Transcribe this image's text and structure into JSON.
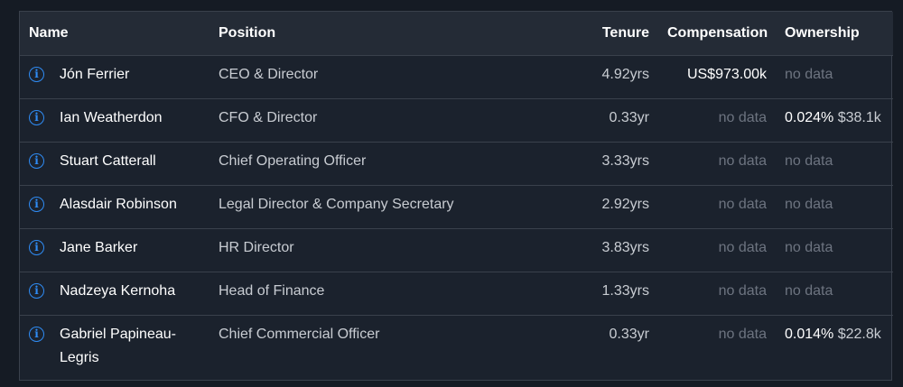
{
  "columns": {
    "name": "Name",
    "position": "Position",
    "tenure": "Tenure",
    "compensation": "Compensation",
    "ownership": "Ownership"
  },
  "rows": [
    {
      "name": "Jón Ferrier",
      "position": "CEO & Director",
      "tenure": "4.92yrs",
      "compensation": "US$973.00k",
      "ownership_pct": "",
      "ownership_amt": "",
      "ownership_text": "no data"
    },
    {
      "name": "Ian Weatherdon",
      "position": "CFO & Director",
      "tenure": "0.33yr",
      "compensation": "no data",
      "ownership_pct": "0.024%",
      "ownership_amt": "$38.1k",
      "ownership_text": ""
    },
    {
      "name": "Stuart Catterall",
      "position": "Chief Operating Officer",
      "tenure": "3.33yrs",
      "compensation": "no data",
      "ownership_pct": "",
      "ownership_amt": "",
      "ownership_text": "no data"
    },
    {
      "name": "Alasdair Robinson",
      "position": "Legal Director & Company Secretary",
      "tenure": "2.92yrs",
      "compensation": "no data",
      "ownership_pct": "",
      "ownership_amt": "",
      "ownership_text": "no data"
    },
    {
      "name": "Jane Barker",
      "position": "HR Director",
      "tenure": "3.83yrs",
      "compensation": "no data",
      "ownership_pct": "",
      "ownership_amt": "",
      "ownership_text": "no data"
    },
    {
      "name": "Nadzeya Kernoha",
      "position": "Head of Finance",
      "tenure": "1.33yrs",
      "compensation": "no data",
      "ownership_pct": "",
      "ownership_amt": "",
      "ownership_text": "no data"
    },
    {
      "name": "Gabriel Papineau-Legris",
      "position": "Chief Commercial Officer",
      "tenure": "0.33yr",
      "compensation": "no data",
      "ownership_pct": "0.014%",
      "ownership_amt": "$22.8k",
      "ownership_text": ""
    }
  ],
  "icons": {
    "info": "info-icon"
  },
  "colors": {
    "accent": "#2f8cf5",
    "background": "#151b24",
    "muted": "#6d7480"
  }
}
